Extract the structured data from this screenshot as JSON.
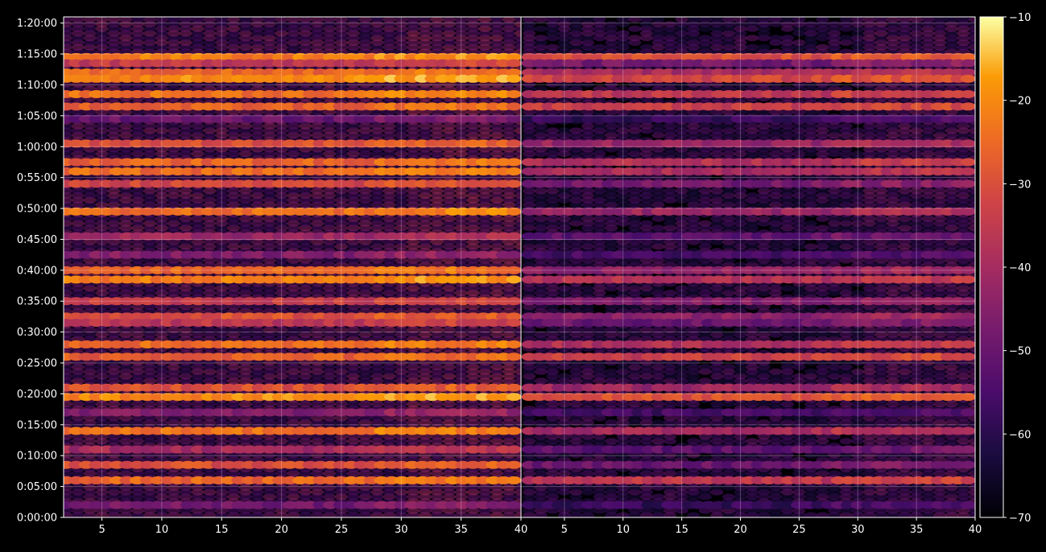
{
  "chart_data": {
    "type": "heatmap",
    "title": "",
    "xlabel": "",
    "ylabel": "",
    "colormap": "inferno",
    "background": "#000000",
    "grid": true,
    "panels": [
      {
        "x_range": [
          1,
          40
        ],
        "x_ticks": [
          5,
          10,
          15,
          20,
          25,
          30,
          35,
          40
        ],
        "x_tick_labels": [
          "5",
          "10",
          "15",
          "20",
          "25",
          "30",
          "35",
          "40"
        ]
      },
      {
        "x_range": [
          1,
          40
        ],
        "x_ticks": [
          5,
          10,
          15,
          20,
          25,
          30,
          35,
          40
        ],
        "x_tick_labels": [
          "5",
          "10",
          "15",
          "20",
          "25",
          "30",
          "35",
          "40"
        ]
      }
    ],
    "y_range_seconds": [
      0,
      4860
    ],
    "y_ticks_seconds": [
      0,
      300,
      600,
      900,
      1200,
      1500,
      1800,
      2100,
      2400,
      2700,
      3000,
      3300,
      3600,
      3900,
      4200,
      4500,
      4800
    ],
    "y_tick_labels": [
      "0:00:00",
      "0:05:00",
      "0:10:00",
      "0:15:00",
      "0:20:00",
      "0:25:00",
      "0:30:00",
      "0:35:00",
      "0:40:00",
      "0:45:00",
      "0:50:00",
      "0:55:00",
      "1:00:00",
      "1:05:00",
      "1:10:00",
      "1:15:00",
      "1:20:00"
    ],
    "colorbar": {
      "range": [
        -70,
        -10
      ],
      "ticks": [
        -70,
        -60,
        -50,
        -40,
        -30,
        -20,
        -10
      ],
      "tick_labels": [
        "−70",
        "−60",
        "−50",
        "−40",
        "−30",
        "−20",
        "−10"
      ]
    },
    "bands": [
      {
        "time": "1:14:30",
        "level_left": -22,
        "level_right": -30
      },
      {
        "time": "1:13:30",
        "level_left": -35,
        "level_right": -48
      },
      {
        "time": "1:12:00",
        "level_left": -26,
        "level_right": -40
      },
      {
        "time": "1:11:00",
        "level_left": -20,
        "level_right": -32
      },
      {
        "time": "1:08:30",
        "level_left": -24,
        "level_right": -36
      },
      {
        "time": "1:06:30",
        "level_left": -27,
        "level_right": -34
      },
      {
        "time": "1:04:30",
        "level_left": -50,
        "level_right": -58
      },
      {
        "time": "1:00:30",
        "level_left": -30,
        "level_right": -42
      },
      {
        "time": "0:57:30",
        "level_left": -26,
        "level_right": -38
      },
      {
        "time": "0:56:00",
        "level_left": -25,
        "level_right": -40
      },
      {
        "time": "0:54:00",
        "level_left": -32,
        "level_right": -48
      },
      {
        "time": "0:49:30",
        "level_left": -24,
        "level_right": -42
      },
      {
        "time": "0:45:30",
        "level_left": -42,
        "level_right": -52
      },
      {
        "time": "0:42:30",
        "level_left": -46,
        "level_right": -56
      },
      {
        "time": "0:40:00",
        "level_left": -26,
        "level_right": -44
      },
      {
        "time": "0:38:30",
        "level_left": -22,
        "level_right": -38
      },
      {
        "time": "0:35:00",
        "level_left": -34,
        "level_right": -46
      },
      {
        "time": "0:32:30",
        "level_left": -30,
        "level_right": -44
      },
      {
        "time": "0:31:30",
        "level_left": -36,
        "level_right": -50
      },
      {
        "time": "0:28:00",
        "level_left": -25,
        "level_right": -38
      },
      {
        "time": "0:26:00",
        "level_left": -27,
        "level_right": -34
      },
      {
        "time": "0:21:00",
        "level_left": -30,
        "level_right": -42
      },
      {
        "time": "0:19:30",
        "level_left": -20,
        "level_right": -30
      },
      {
        "time": "0:17:00",
        "level_left": -46,
        "level_right": -56
      },
      {
        "time": "0:14:00",
        "level_left": -24,
        "level_right": -40
      },
      {
        "time": "0:11:00",
        "level_left": -40,
        "level_right": -52
      },
      {
        "time": "0:08:30",
        "level_left": -30,
        "level_right": -50
      },
      {
        "time": "0:06:00",
        "level_left": -26,
        "level_right": -36
      },
      {
        "time": "0:02:00",
        "level_left": -48,
        "level_right": -58
      }
    ]
  }
}
